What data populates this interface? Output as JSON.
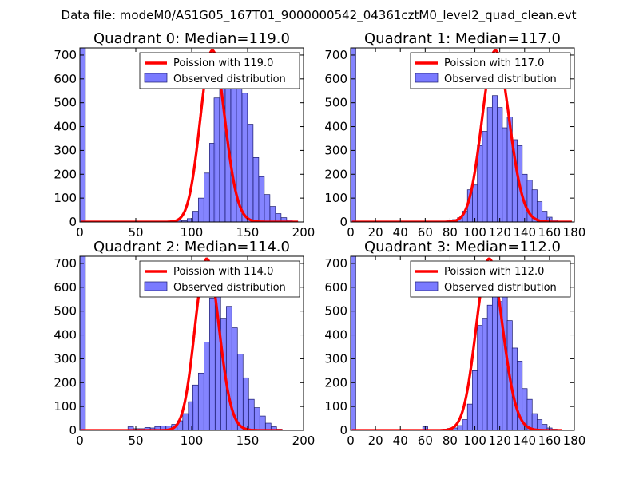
{
  "figure": {
    "suptitle": "Data file: modeM0/AS1G05_167T01_9000000542_04361cztM0_level2_quad_clean.evt"
  },
  "chart_data": [
    {
      "type": "bar",
      "title": "Quadrant 0: Median=119.0",
      "median": 119.0,
      "xlim": [
        0,
        200
      ],
      "ylim": [
        0,
        730
      ],
      "xticks": [
        "0",
        "50",
        "100",
        "150",
        "200"
      ],
      "yticks": [
        "0",
        "100",
        "200",
        "300",
        "400",
        "500",
        "600",
        "700"
      ],
      "bin_width": 4.9,
      "first_bin_count": 730,
      "bins": [
        [
          62,
          1
        ],
        [
          67,
          1
        ],
        [
          72,
          1
        ],
        [
          77,
          3
        ],
        [
          81,
          5
        ],
        [
          86,
          7
        ],
        [
          91,
          5
        ],
        [
          96,
          14
        ],
        [
          101,
          45
        ],
        [
          106,
          100
        ],
        [
          111,
          205
        ],
        [
          116,
          330
        ],
        [
          120,
          520
        ],
        [
          125,
          640
        ],
        [
          130,
          695
        ],
        [
          135,
          640
        ],
        [
          140,
          590
        ],
        [
          145,
          540
        ],
        [
          150,
          410
        ],
        [
          155,
          270
        ],
        [
          160,
          190
        ],
        [
          165,
          115
        ],
        [
          170,
          65
        ],
        [
          175,
          35
        ],
        [
          180,
          18
        ],
        [
          185,
          8
        ],
        [
          190,
          3
        ]
      ],
      "curve_range": [
        1,
        195
      ],
      "legend": [
        "Poission with 119.0",
        "Observed distribution"
      ]
    },
    {
      "type": "bar",
      "title": "Quadrant 1: Median=117.0",
      "median": 117.0,
      "xlim": [
        0,
        180
      ],
      "ylim": [
        0,
        730
      ],
      "xticks": [
        "0",
        "20",
        "40",
        "60",
        "80",
        "100",
        "120",
        "140",
        "160",
        "180"
      ],
      "yticks": [
        "0",
        "100",
        "200",
        "300",
        "400",
        "500",
        "600",
        "700"
      ],
      "bin_width": 4.1,
      "first_bin_count": 730,
      "bins": [
        [
          66,
          1
        ],
        [
          70,
          2
        ],
        [
          74,
          3
        ],
        [
          78,
          5
        ],
        [
          82,
          10
        ],
        [
          86,
          18
        ],
        [
          90,
          45
        ],
        [
          94,
          135
        ],
        [
          98,
          155
        ],
        [
          102,
          320
        ],
        [
          106,
          380
        ],
        [
          110,
          480
        ],
        [
          114,
          530
        ],
        [
          118,
          480
        ],
        [
          122,
          395
        ],
        [
          126,
          440
        ],
        [
          130,
          345
        ],
        [
          134,
          320
        ],
        [
          138,
          200
        ],
        [
          142,
          175
        ],
        [
          146,
          135
        ],
        [
          150,
          85
        ],
        [
          154,
          45
        ],
        [
          158,
          20
        ],
        [
          162,
          8
        ],
        [
          166,
          3
        ]
      ],
      "curve_range": [
        1,
        178
      ],
      "legend": [
        "Poission with 117.0",
        "Observed distribution"
      ]
    },
    {
      "type": "bar",
      "title": "Quadrant 2: Median=114.0",
      "median": 114.0,
      "xlim": [
        0,
        200
      ],
      "ylim": [
        0,
        730
      ],
      "xticks": [
        "0",
        "50",
        "100",
        "150",
        "200"
      ],
      "yticks": [
        "0",
        "100",
        "200",
        "300",
        "400",
        "500",
        "600",
        "700"
      ],
      "bin_width": 4.9,
      "first_bin_count": 730,
      "bins": [
        [
          43,
          15
        ],
        [
          48,
          7
        ],
        [
          53,
          7
        ],
        [
          58,
          12
        ],
        [
          63,
          10
        ],
        [
          67,
          16
        ],
        [
          72,
          18
        ],
        [
          77,
          18
        ],
        [
          82,
          25
        ],
        [
          87,
          40
        ],
        [
          92,
          70
        ],
        [
          97,
          120
        ],
        [
          101,
          190
        ],
        [
          106,
          240
        ],
        [
          111,
          370
        ],
        [
          116,
          555
        ],
        [
          121,
          630
        ],
        [
          126,
          470
        ],
        [
          131,
          520
        ],
        [
          136,
          430
        ],
        [
          141,
          320
        ],
        [
          146,
          220
        ],
        [
          151,
          130
        ],
        [
          156,
          95
        ],
        [
          161,
          60
        ],
        [
          166,
          30
        ],
        [
          171,
          15
        ],
        [
          176,
          5
        ]
      ],
      "curve_range": [
        1,
        181
      ],
      "legend": [
        "Poission with 114.0",
        "Observed distribution"
      ]
    },
    {
      "type": "bar",
      "title": "Quadrant 3: Median=112.0",
      "median": 112.0,
      "xlim": [
        0,
        180
      ],
      "ylim": [
        0,
        730
      ],
      "xticks": [
        "0",
        "20",
        "40",
        "60",
        "80",
        "100",
        "120",
        "140",
        "160",
        "180"
      ],
      "yticks": [
        "0",
        "100",
        "200",
        "300",
        "400",
        "500",
        "600",
        "700"
      ],
      "bin_width": 4.1,
      "first_bin_count": 730,
      "bins": [
        [
          58,
          15
        ],
        [
          62,
          2
        ],
        [
          66,
          3
        ],
        [
          70,
          3
        ],
        [
          74,
          5
        ],
        [
          78,
          8
        ],
        [
          82,
          10
        ],
        [
          86,
          20
        ],
        [
          90,
          45
        ],
        [
          94,
          110
        ],
        [
          98,
          250
        ],
        [
          102,
          440
        ],
        [
          106,
          470
        ],
        [
          110,
          525
        ],
        [
          114,
          625
        ],
        [
          118,
          540
        ],
        [
          122,
          560
        ],
        [
          126,
          460
        ],
        [
          130,
          345
        ],
        [
          134,
          290
        ],
        [
          138,
          175
        ],
        [
          142,
          130
        ],
        [
          146,
          70
        ],
        [
          150,
          45
        ],
        [
          154,
          25
        ],
        [
          158,
          10
        ],
        [
          162,
          5
        ]
      ],
      "curve_range": [
        1,
        170
      ],
      "legend": [
        "Poission with 112.0",
        "Observed distribution"
      ]
    }
  ],
  "colors": {
    "bar_fill": "#7a7aff",
    "bar_edge": "#1a1a6e",
    "curve": "#ff0000",
    "axis": "#000000"
  }
}
